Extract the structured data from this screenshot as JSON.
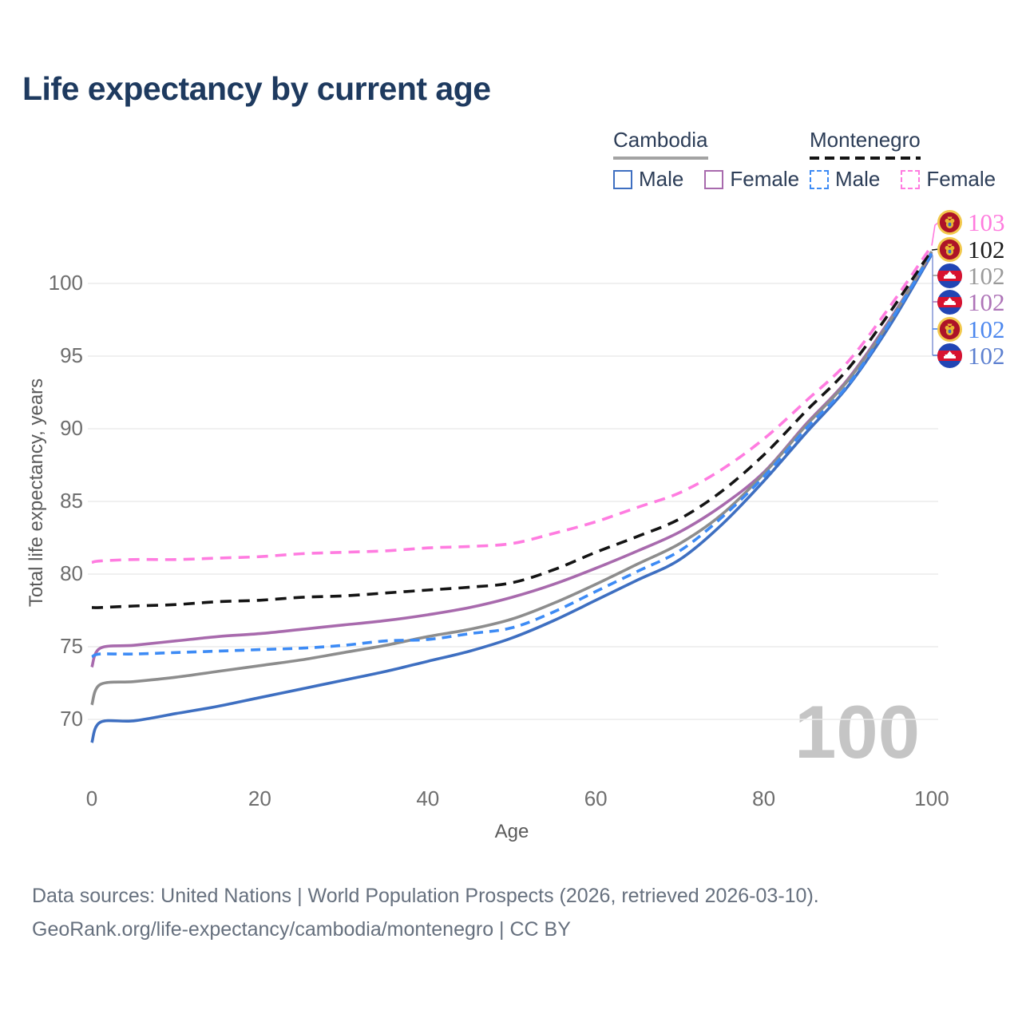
{
  "title": "Life expectancy by current age",
  "legend": {
    "groups": [
      {
        "label": "Cambodia",
        "line_style": "solid",
        "underline_color": "#a3a3a3",
        "items": [
          {
            "label": "Male",
            "color": "#3E6FC1",
            "dashed": false
          },
          {
            "label": "Female",
            "color": "#A86AAD",
            "dashed": false
          }
        ]
      },
      {
        "label": "Montenegro",
        "line_style": "dashed",
        "underline_color": "#141414",
        "items": [
          {
            "label": "Male",
            "color": "#3D8BF5",
            "dashed": true
          },
          {
            "label": "Female",
            "color": "#FF7CE0",
            "dashed": true
          }
        ]
      }
    ]
  },
  "watermark": "100",
  "chart_data": {
    "type": "line",
    "title": "Life expectancy by current age",
    "xlabel": "Age",
    "ylabel": "Total life expectancy, years",
    "x_ticks": [
      0,
      20,
      40,
      60,
      80,
      100
    ],
    "y_ticks": [
      70,
      75,
      80,
      85,
      90,
      95,
      100
    ],
    "xlim": [
      0,
      100
    ],
    "ylim": [
      68,
      104
    ],
    "grid": "horizontal",
    "legend_position": "top-right",
    "x": [
      0,
      1,
      5,
      10,
      15,
      20,
      25,
      30,
      35,
      40,
      45,
      50,
      55,
      60,
      65,
      70,
      75,
      80,
      85,
      90,
      95,
      100
    ],
    "series": [
      {
        "name": "Cambodia Male",
        "country": "cambodia",
        "sex": "male",
        "color": "#3E6FC1",
        "dash": null,
        "values": [
          68.4,
          69.8,
          69.9,
          70.4,
          70.9,
          71.5,
          72.1,
          72.7,
          73.3,
          74.0,
          74.7,
          75.6,
          76.8,
          78.2,
          79.6,
          81.0,
          83.4,
          86.4,
          89.7,
          92.9,
          97.1,
          102.0
        ],
        "end_label": "102"
      },
      {
        "name": "Cambodia Female",
        "country": "cambodia",
        "sex": "female",
        "color": "#A86AAD",
        "dash": null,
        "values": [
          73.6,
          74.9,
          75.1,
          75.4,
          75.7,
          75.9,
          76.2,
          76.5,
          76.8,
          77.2,
          77.7,
          78.4,
          79.3,
          80.4,
          81.6,
          82.9,
          84.7,
          87.0,
          90.3,
          93.4,
          97.5,
          102.1
        ],
        "end_label": "102"
      },
      {
        "name": "Cambodia Total",
        "country": "cambodia",
        "sex": "both",
        "color": "#8D8D8D",
        "dash": null,
        "values": [
          71.0,
          72.4,
          72.6,
          72.9,
          73.3,
          73.7,
          74.1,
          74.6,
          75.1,
          75.7,
          76.2,
          76.9,
          78.0,
          79.3,
          80.7,
          82.1,
          84.1,
          86.9,
          90.2,
          93.3,
          97.4,
          102.2
        ],
        "end_label": "102"
      },
      {
        "name": "Montenegro Male",
        "country": "montenegro",
        "sex": "male",
        "color": "#3D8BF5",
        "dash": "12 8",
        "values": [
          74.3,
          74.5,
          74.5,
          74.6,
          74.7,
          74.8,
          74.9,
          75.1,
          75.4,
          75.5,
          75.9,
          76.3,
          77.4,
          78.8,
          80.2,
          81.6,
          83.9,
          86.7,
          90.0,
          93.0,
          97.3,
          102.1
        ],
        "end_label": "102"
      },
      {
        "name": "Montenegro Total",
        "country": "montenegro",
        "sex": "both",
        "color": "#141414",
        "dash": "14 9",
        "values": [
          77.7,
          77.7,
          77.8,
          77.9,
          78.1,
          78.2,
          78.4,
          78.5,
          78.7,
          78.9,
          79.1,
          79.4,
          80.3,
          81.5,
          82.6,
          83.8,
          85.7,
          88.2,
          91.2,
          94.1,
          98.0,
          102.3
        ],
        "end_label": "102"
      },
      {
        "name": "Montenegro Female",
        "country": "montenegro",
        "sex": "female",
        "color": "#FF7CE0",
        "dash": "14 9",
        "values": [
          80.8,
          80.9,
          81.0,
          81.0,
          81.1,
          81.2,
          81.4,
          81.5,
          81.6,
          81.8,
          81.9,
          82.1,
          82.8,
          83.6,
          84.6,
          85.6,
          87.2,
          89.3,
          91.9,
          94.6,
          98.4,
          102.6
        ],
        "end_label": "103"
      }
    ]
  },
  "end_labels": [
    {
      "value": "103",
      "flag": "montenegro",
      "color": "#FF7BDE",
      "series": "Montenegro Female"
    },
    {
      "value": "102",
      "flag": "montenegro",
      "color": "#1a1a1a",
      "series": "Montenegro Total"
    },
    {
      "value": "102",
      "flag": "cambodia",
      "color": "#9a9a9a",
      "series": "Cambodia Total"
    },
    {
      "value": "102",
      "flag": "cambodia",
      "color": "#AE74B8",
      "series": "Cambodia Female"
    },
    {
      "value": "102",
      "flag": "montenegro",
      "color": "#4C87EE",
      "series": "Montenegro Male"
    },
    {
      "value": "102",
      "flag": "cambodia",
      "color": "#5D80D0",
      "series": "Cambodia Male"
    }
  ],
  "footer": {
    "line1": "Data sources: United Nations | World Population Prospects (2026, retrieved 2026-03-10).",
    "line2": "GeoRank.org/life-expectancy/cambodia/montenegro | CC BY"
  }
}
